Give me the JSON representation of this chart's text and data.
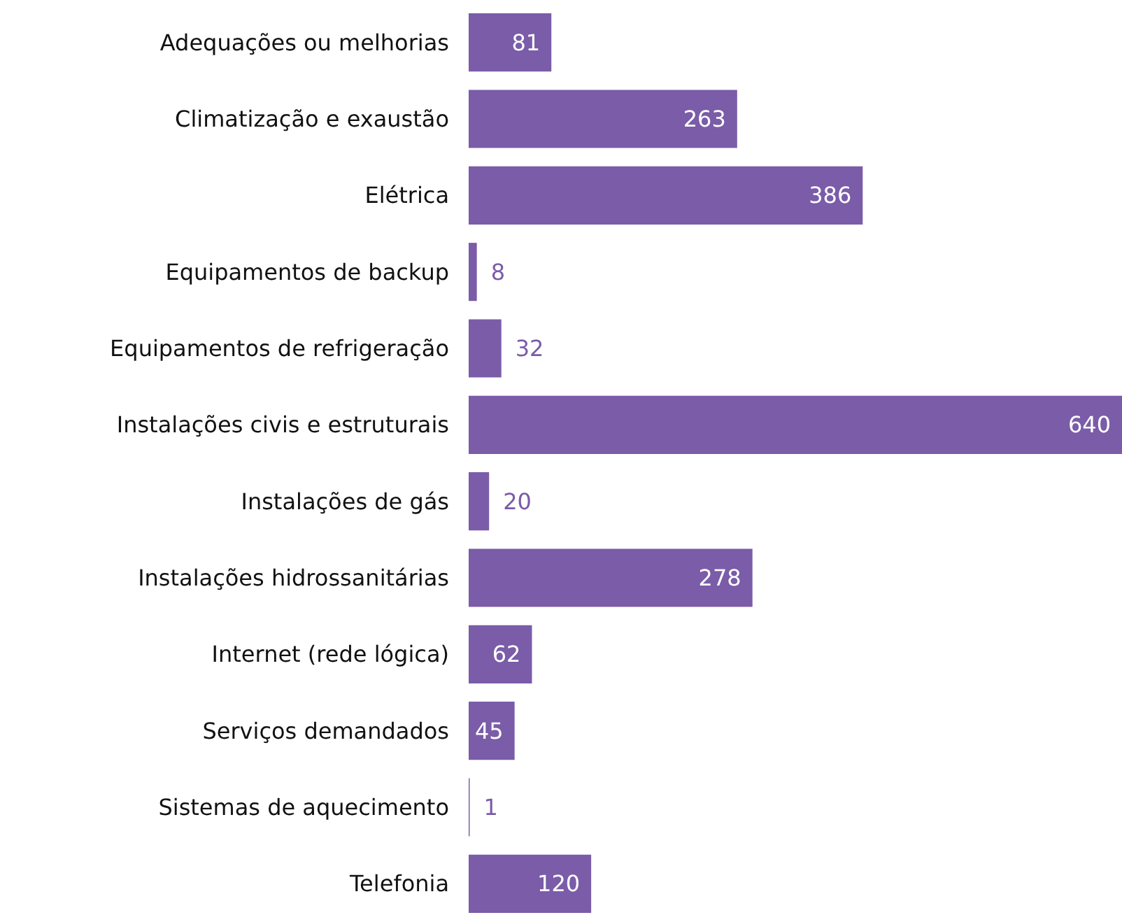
{
  "chart_data": {
    "type": "bar",
    "orientation": "horizontal",
    "categories": [
      "Adequações ou melhorias",
      "Climatização e exaustão",
      "Elétrica",
      "Equipamentos de backup",
      "Equipamentos de refrigeração",
      "Instalações civis e estruturais",
      "Instalações de gás",
      "Instalações hidrossanitárias",
      "Internet (rede lógica)",
      "Serviços demandados",
      "Sistemas de aquecimento",
      "Telefonia"
    ],
    "values": [
      81,
      263,
      386,
      8,
      32,
      640,
      20,
      278,
      62,
      45,
      1,
      120
    ],
    "color": "#7a5ca8",
    "xlim": [
      0,
      640
    ],
    "data_labels": true
  }
}
